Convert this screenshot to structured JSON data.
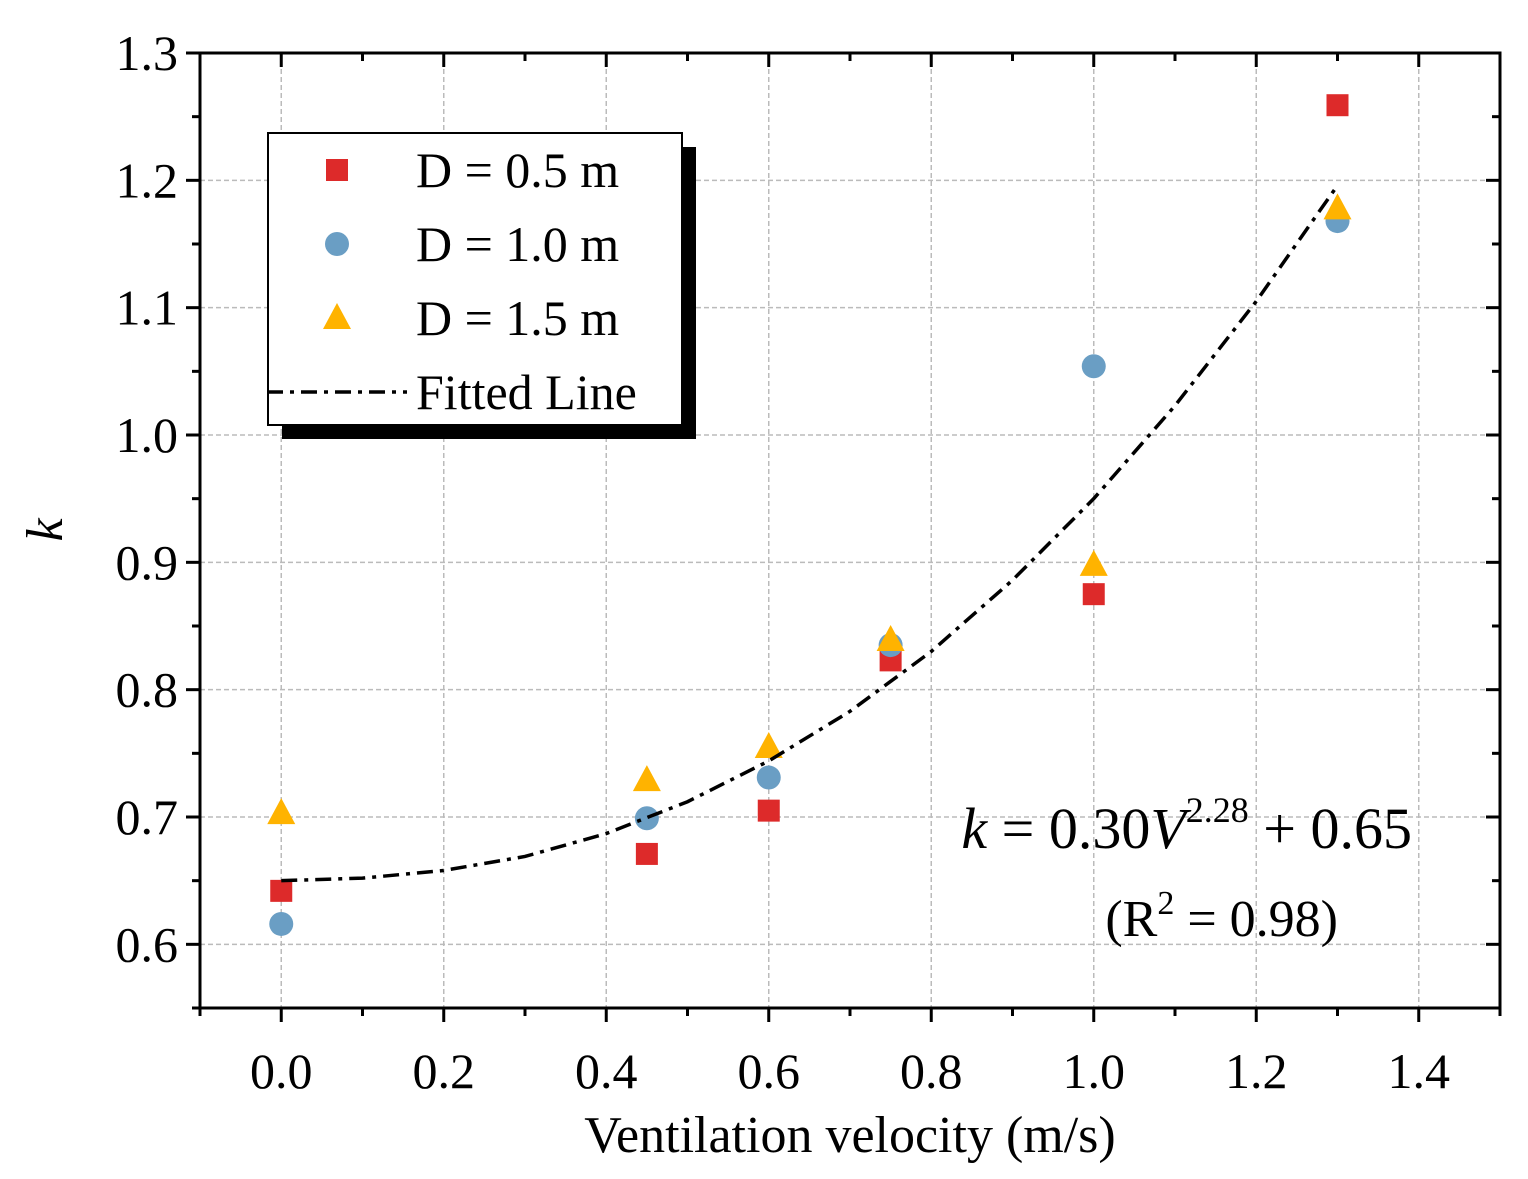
{
  "chart_data": {
    "type": "scatter",
    "x_label": "Ventilation velocity (m/s)",
    "y_label": "k",
    "x": [
      0,
      0.45,
      0.6,
      0.75,
      1.0,
      1.3
    ],
    "series": [
      {
        "name": "D = 0.5 m",
        "color": "#dd2a2a",
        "marker": "square",
        "values": [
          0.642,
          0.671,
          0.705,
          0.823,
          0.875,
          1.259
        ]
      },
      {
        "name": "D = 1.0 m",
        "color": "#6a9ec4",
        "marker": "circle",
        "values": [
          0.616,
          0.699,
          0.731,
          0.835,
          1.054,
          1.168
        ]
      },
      {
        "name": "D = 1.5 m",
        "color": "#ffb300",
        "marker": "triangle",
        "values": [
          0.703,
          0.729,
          0.755,
          0.839,
          0.898,
          1.178
        ]
      },
      {
        "name": "Fitted Line",
        "color": "#000000",
        "marker": "dash-dot-line",
        "x": [
          0,
          0.1,
          0.2,
          0.3,
          0.4,
          0.5,
          0.6,
          0.7,
          0.8,
          0.9,
          1.0,
          1.1,
          1.2,
          1.3
        ],
        "values": [
          0.65,
          0.652,
          0.658,
          0.669,
          0.687,
          0.712,
          0.744,
          0.783,
          0.83,
          0.886,
          0.95,
          1.023,
          1.105,
          1.196
        ]
      }
    ],
    "xlim": [
      -0.1,
      1.5
    ],
    "ylim": [
      0.55,
      1.3
    ],
    "xticks": [
      {
        "value": 0,
        "label": "0.0"
      },
      0.2,
      0.4,
      0.6,
      0.8,
      {
        "value": 1.0,
        "label": "1.0"
      },
      1.2,
      1.4
    ],
    "yticks": [
      0.6,
      0.7,
      0.8,
      0.9,
      {
        "value": 1.0,
        "label": "1.0"
      },
      1.1,
      1.2,
      1.3
    ],
    "grid": true,
    "legend": "upper left",
    "annotations": {
      "equation": [
        "k",
        " = 0.30",
        "V",
        "2.28",
        " + 0.65"
      ],
      "r_squared": [
        "(R",
        "2",
        " = 0.98)"
      ]
    }
  }
}
